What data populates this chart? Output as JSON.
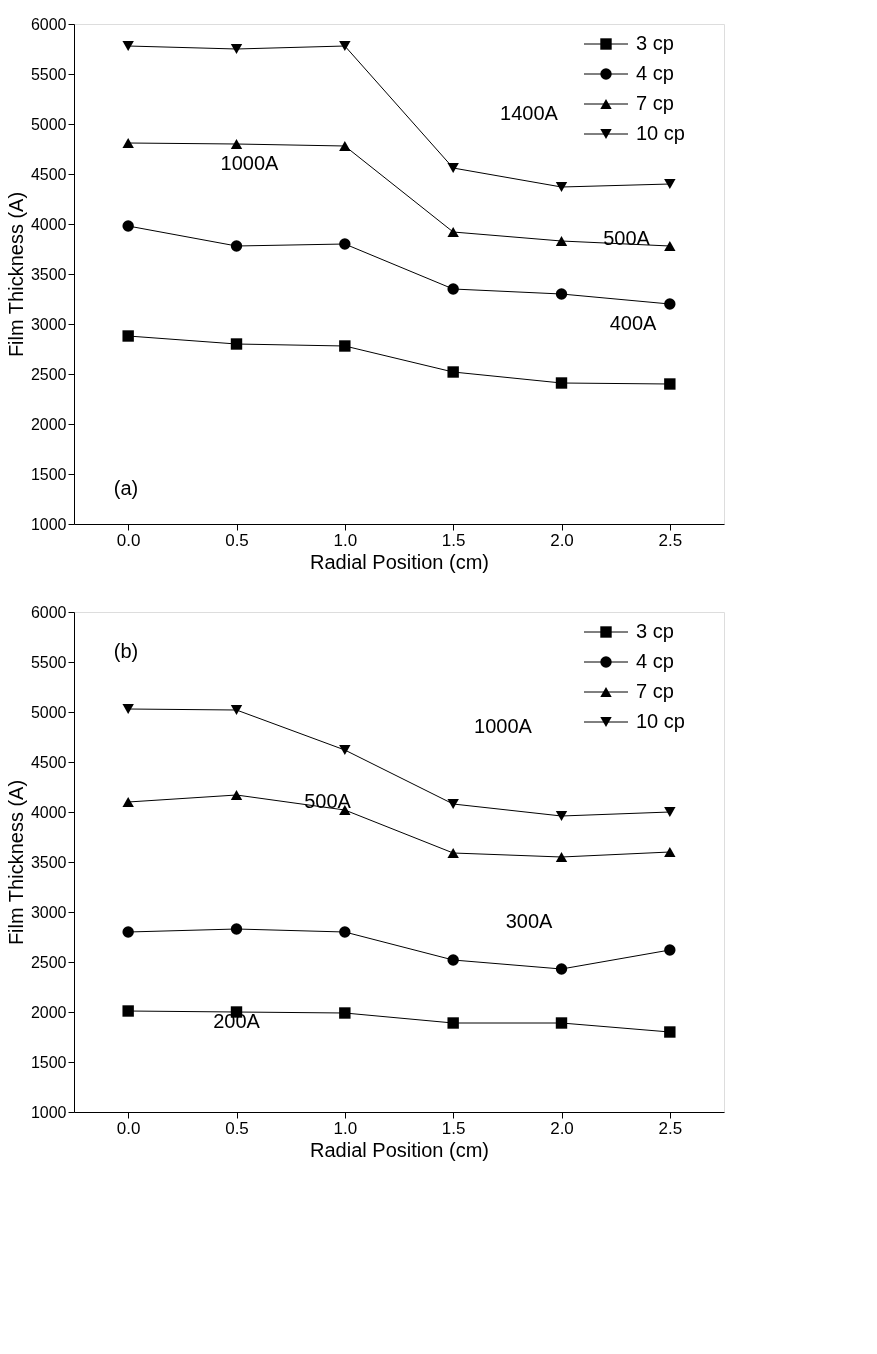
{
  "chart_data": [
    {
      "type": "line",
      "xlabel": "Radial Position (cm)",
      "ylabel": "Film Thickness (A)",
      "x": [
        0,
        0.5,
        1,
        1.5,
        2,
        2.5
      ],
      "xlim": [
        -0.25,
        2.75
      ],
      "xticks": [
        {
          "value": 0,
          "label": "0.0"
        },
        {
          "value": 0.5,
          "label": "0.5"
        },
        {
          "value": 1,
          "label": "1.0"
        },
        {
          "value": 1.5,
          "label": "1.5"
        },
        {
          "value": 2,
          "label": "2.0"
        },
        {
          "value": 2.5,
          "label": "2.5"
        }
      ],
      "ylim": [
        1000,
        6000
      ],
      "yticks": [
        1000,
        1500,
        2000,
        2500,
        3000,
        3500,
        4000,
        4500,
        5000,
        5500,
        6000
      ],
      "legend": "top right",
      "grid": false,
      "series": [
        {
          "name": "3 cp",
          "color": "#000000",
          "marker": "square",
          "values": [
            2880,
            2800,
            2780,
            2520,
            2410,
            2400
          ]
        },
        {
          "name": "4 cp",
          "color": "#000000",
          "marker": "circle",
          "values": [
            3980,
            3780,
            3800,
            3350,
            3300,
            3200
          ]
        },
        {
          "name": "7 cp",
          "color": "#000000",
          "marker": "triangle",
          "values": [
            4810,
            4800,
            4780,
            3920,
            3830,
            3780
          ]
        },
        {
          "name": "10 cp",
          "color": "#000000",
          "marker": "triangle-down",
          "values": [
            5780,
            5750,
            5780,
            4560,
            4370,
            4400
          ]
        }
      ],
      "annotations": [
        "1400A",
        "1000A",
        "500A",
        "400A",
        "(a)"
      ]
    },
    {
      "type": "line",
      "xlabel": "Radial Position (cm)",
      "ylabel": "Film Thickness (A)",
      "x": [
        0,
        0.5,
        1,
        1.5,
        2,
        2.5
      ],
      "xlim": [
        -0.25,
        2.75
      ],
      "xticks": [
        {
          "value": 0,
          "label": "0.0"
        },
        {
          "value": 0.5,
          "label": "0.5"
        },
        {
          "value": 1,
          "label": "1.0"
        },
        {
          "value": 1.5,
          "label": "1.5"
        },
        {
          "value": 2,
          "label": "2.0"
        },
        {
          "value": 2.5,
          "label": "2.5"
        }
      ],
      "ylim": [
        1000,
        6000
      ],
      "yticks": [
        1000,
        1500,
        2000,
        2500,
        3000,
        3500,
        4000,
        4500,
        5000,
        5500,
        6000
      ],
      "legend": "top right",
      "grid": false,
      "series": [
        {
          "name": "3 cp",
          "color": "#000000",
          "marker": "square",
          "values": [
            2010,
            2000,
            1990,
            1890,
            1890,
            1800
          ]
        },
        {
          "name": "4 cp",
          "color": "#000000",
          "marker": "circle",
          "values": [
            2800,
            2830,
            2800,
            2520,
            2430,
            2620
          ]
        },
        {
          "name": "7 cp",
          "color": "#000000",
          "marker": "triangle",
          "values": [
            4100,
            4170,
            4020,
            3590,
            3550,
            3600
          ]
        },
        {
          "name": "10 cp",
          "color": "#000000",
          "marker": "triangle-down",
          "values": [
            5030,
            5020,
            4620,
            4080,
            3960,
            4000
          ]
        }
      ],
      "annotations": [
        "1000A",
        "500A",
        "300A",
        "200A",
        "(b)"
      ]
    }
  ]
}
